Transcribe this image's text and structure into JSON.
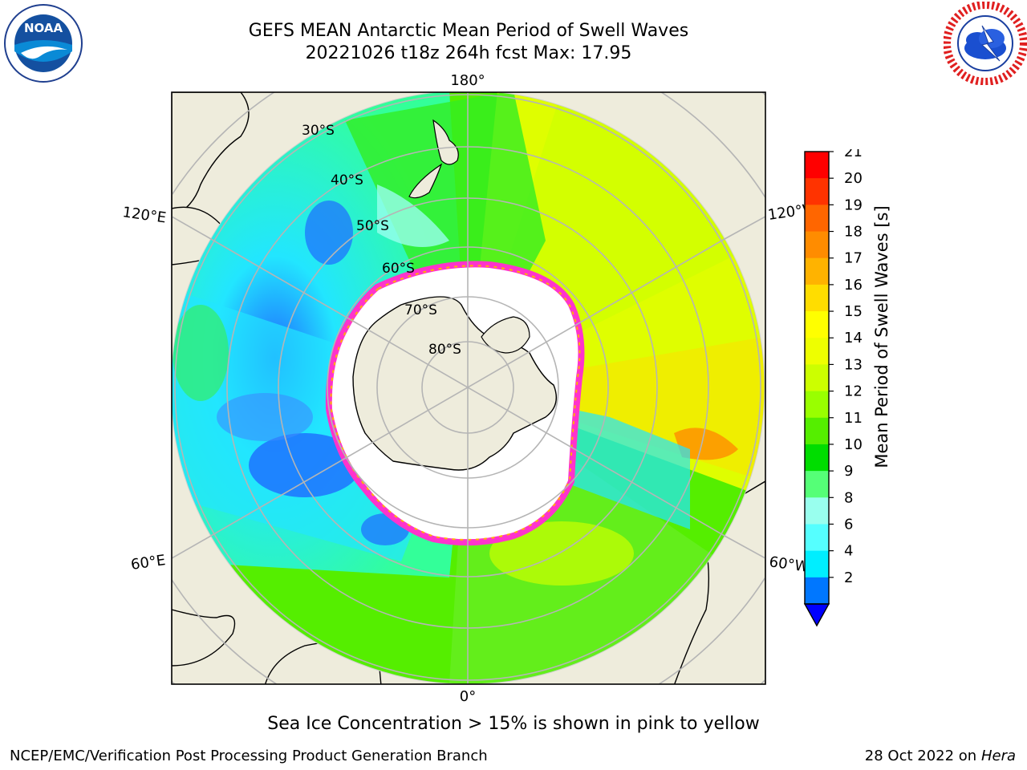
{
  "header": {
    "title_line1": "GEFS MEAN Antarctic Mean Period of Swell Waves",
    "title_line2": "20221026 t18z 264h fcst   Max: 17.95"
  },
  "logos": {
    "left": {
      "icon": "noaa-logo-icon",
      "text": "NOAA"
    },
    "right": {
      "icon": "national-weather-service-logo-icon"
    }
  },
  "map": {
    "projection": "south-polar-stereographic",
    "longitude_labels": [
      "180°",
      "120°E",
      "120°W",
      "60°E",
      "60°W",
      "0°"
    ],
    "latitude_labels": [
      "30°S",
      "40°S",
      "50°S",
      "60°S",
      "70°S",
      "80°S"
    ],
    "colors": {
      "land": "#eeecdc",
      "ice_free_ocean_edge": "#ff33cc",
      "grid": "#b0b0b0"
    }
  },
  "colorbar": {
    "label": "Mean Period of Swell Waves [s]",
    "ticks": [
      "21",
      "20",
      "19",
      "18",
      "17",
      "16",
      "15",
      "14",
      "13",
      "12",
      "11",
      "10",
      "9",
      "8",
      "6",
      "4",
      "2"
    ],
    "colors": [
      "#ff0000",
      "#ff3300",
      "#ff6600",
      "#ff8c00",
      "#ffb300",
      "#ffdd00",
      "#ffff00",
      "#eeff00",
      "#ccff00",
      "#99ff00",
      "#55ee00",
      "#00dd00",
      "#55ff77",
      "#99ffee",
      "#55ffff",
      "#00eeff",
      "#0077ff"
    ],
    "extend_color": "#0000ff"
  },
  "note": "Sea Ice Concentration > 15% is shown in pink to yellow",
  "footer": {
    "left": "NCEP/EMC/Verification Post Processing Product Generation Branch",
    "date": "28 Oct 2022 on ",
    "system": "Hera"
  }
}
